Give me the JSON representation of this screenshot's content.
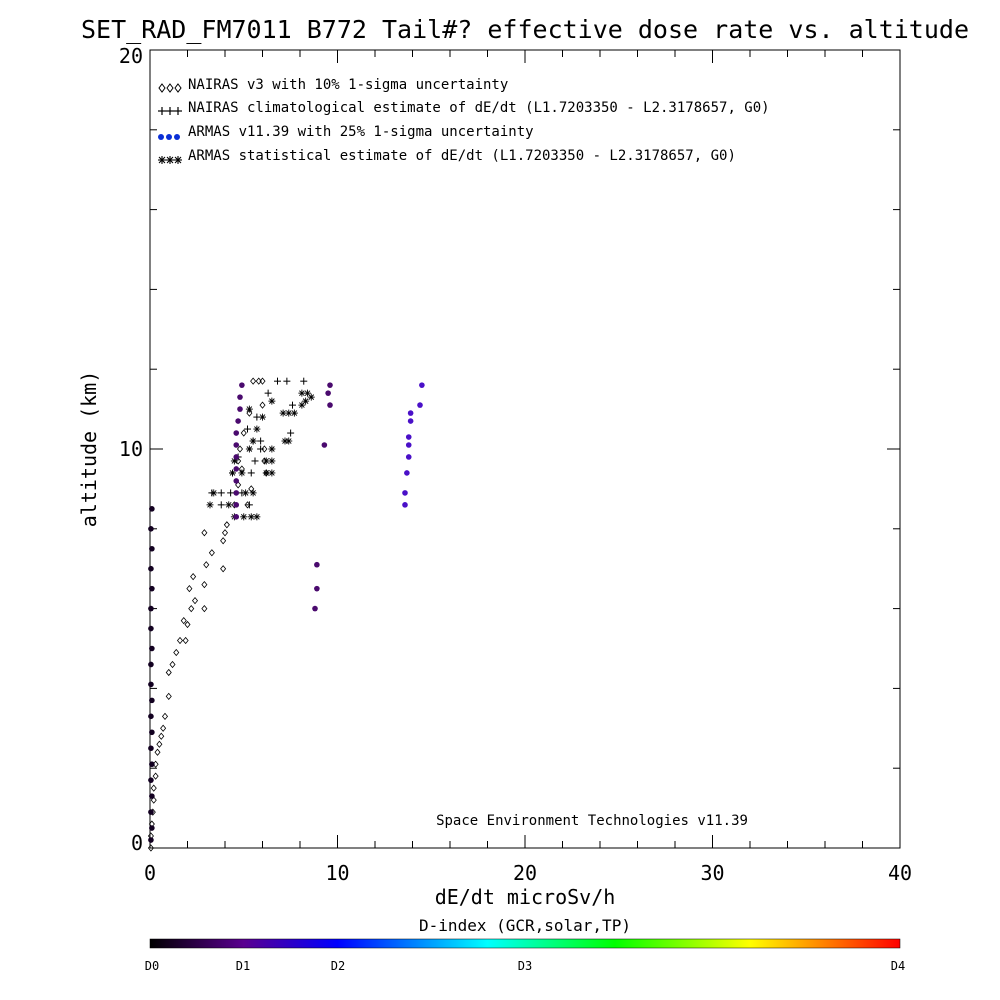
{
  "chart_data": {
    "type": "scatter",
    "title": "SET_RAD_FM7011  B772 Tail#? effective dose rate vs. altitude",
    "xlabel": "dE/dt microSv/h",
    "ylabel": "altitude (km)",
    "xlim": [
      0,
      40
    ],
    "ylim": [
      0,
      20
    ],
    "x_tick_labels": [
      "0",
      "10",
      "20",
      "30",
      "40"
    ],
    "y_tick_labels": [
      "0",
      "10",
      "20"
    ],
    "grid": false,
    "legend_position": "top-left",
    "legend": [
      {
        "marker": "diamond",
        "label": "NAIRAS v3 with 10% 1-sigma uncertainty"
      },
      {
        "marker": "plus",
        "label": "NAIRAS climatological estimate of dE/dt (L1.7203350 - L2.3178657, G0)"
      },
      {
        "marker": "dot",
        "label": "ARMAS v11.39 with 25% 1-sigma uncertainty"
      },
      {
        "marker": "asterisk",
        "label": "ARMAS statistical estimate of dE/dt (L1.7203350 - L2.3178657, G0)"
      }
    ],
    "annotation": "Space Environment Technologies v11.39",
    "colorbar": {
      "title": "D-index (GCR,solar,TP)",
      "labels": [
        {
          "text": "D0",
          "value": 0
        },
        {
          "text": "D1",
          "value": 0.25
        },
        {
          "text": "D2",
          "value": 0.5
        },
        {
          "text": "D3",
          "value": 1.0
        },
        {
          "text": "D4",
          "value": 2.0
        }
      ],
      "colors": [
        "#000000",
        "#5a0090",
        "#0000ff",
        "#00ffff",
        "#00ff00",
        "#ffff00",
        "#ff0000"
      ]
    },
    "series": [
      {
        "marker": "diamond",
        "points": [
          [
            0.05,
            0.0
          ],
          [
            0.05,
            0.3
          ],
          [
            0.1,
            0.6
          ],
          [
            0.15,
            0.9
          ],
          [
            0.2,
            1.2
          ],
          [
            0.2,
            1.5
          ],
          [
            0.3,
            1.8
          ],
          [
            0.3,
            2.1
          ],
          [
            0.4,
            2.4
          ],
          [
            0.5,
            2.6
          ],
          [
            0.6,
            2.8
          ],
          [
            0.7,
            3.0
          ],
          [
            0.8,
            3.3
          ],
          [
            1.0,
            3.8
          ],
          [
            1.0,
            4.4
          ],
          [
            1.2,
            4.6
          ],
          [
            1.4,
            4.9
          ],
          [
            1.6,
            5.2
          ],
          [
            1.9,
            5.2
          ],
          [
            2.0,
            5.6
          ],
          [
            1.8,
            5.7
          ],
          [
            2.2,
            6.0
          ],
          [
            2.4,
            6.2
          ],
          [
            2.9,
            6.0
          ],
          [
            2.1,
            6.5
          ],
          [
            2.9,
            6.6
          ],
          [
            2.3,
            6.8
          ],
          [
            3.0,
            7.1
          ],
          [
            3.9,
            7.0
          ],
          [
            3.3,
            7.4
          ],
          [
            3.9,
            7.7
          ],
          [
            4.0,
            7.9
          ],
          [
            2.9,
            7.9
          ],
          [
            4.1,
            8.1
          ],
          [
            4.5,
            8.6
          ],
          [
            5.2,
            8.6
          ],
          [
            4.7,
            9.1
          ],
          [
            5.4,
            9.0
          ],
          [
            4.9,
            9.5
          ],
          [
            6.2,
            9.4
          ],
          [
            4.7,
            9.7
          ],
          [
            6.1,
            9.7
          ],
          [
            4.8,
            10.0
          ],
          [
            6.1,
            10.0
          ],
          [
            5.0,
            10.4
          ],
          [
            5.3,
            10.9
          ],
          [
            6.0,
            11.1
          ],
          [
            5.5,
            11.7
          ],
          [
            5.8,
            11.7
          ],
          [
            6.0,
            11.7
          ]
        ]
      },
      {
        "marker": "plus",
        "points": [
          [
            3.3,
            8.9
          ],
          [
            3.8,
            8.9
          ],
          [
            4.3,
            8.9
          ],
          [
            3.8,
            8.6
          ],
          [
            4.9,
            8.9
          ],
          [
            5.3,
            8.6
          ],
          [
            4.4,
            9.4
          ],
          [
            5.4,
            9.4
          ],
          [
            5.6,
            9.7
          ],
          [
            4.7,
            9.8
          ],
          [
            5.5,
            10.2
          ],
          [
            5.9,
            10.2
          ],
          [
            5.2,
            10.5
          ],
          [
            5.9,
            10.0
          ],
          [
            5.7,
            10.8
          ],
          [
            6.3,
            11.4
          ],
          [
            7.6,
            11.1
          ],
          [
            7.5,
            10.4
          ],
          [
            6.8,
            11.7
          ],
          [
            7.3,
            11.7
          ],
          [
            8.2,
            11.7
          ]
        ]
      },
      {
        "marker": "asterisk",
        "points": [
          [
            3.2,
            8.6
          ],
          [
            3.4,
            8.9
          ],
          [
            4.2,
            8.6
          ],
          [
            4.5,
            8.3
          ],
          [
            5.0,
            8.3
          ],
          [
            5.4,
            8.3
          ],
          [
            5.7,
            8.3
          ],
          [
            5.1,
            8.9
          ],
          [
            5.5,
            8.9
          ],
          [
            4.4,
            9.4
          ],
          [
            4.9,
            9.4
          ],
          [
            6.2,
            9.4
          ],
          [
            6.5,
            9.4
          ],
          [
            4.5,
            9.7
          ],
          [
            6.2,
            9.7
          ],
          [
            6.5,
            9.7
          ],
          [
            5.3,
            10.0
          ],
          [
            6.5,
            10.0
          ],
          [
            5.5,
            10.2
          ],
          [
            7.2,
            10.2
          ],
          [
            7.4,
            10.2
          ],
          [
            5.7,
            10.5
          ],
          [
            6.0,
            10.8
          ],
          [
            7.1,
            10.9
          ],
          [
            7.4,
            10.9
          ],
          [
            7.7,
            10.9
          ],
          [
            5.3,
            11.0
          ],
          [
            6.5,
            11.2
          ],
          [
            8.1,
            11.1
          ],
          [
            8.3,
            11.2
          ],
          [
            8.1,
            11.4
          ],
          [
            8.4,
            11.4
          ],
          [
            8.6,
            11.3
          ]
        ]
      },
      {
        "marker": "dot",
        "points": [
          [
            0.05,
            0.2
          ],
          [
            0.1,
            0.5
          ],
          [
            0.05,
            0.9
          ],
          [
            0.1,
            1.3
          ],
          [
            0.05,
            1.7
          ],
          [
            0.1,
            2.1
          ],
          [
            0.05,
            2.5
          ],
          [
            0.1,
            2.9
          ],
          [
            0.05,
            3.3
          ],
          [
            0.1,
            3.7
          ],
          [
            0.05,
            4.1
          ],
          [
            0.05,
            4.6
          ],
          [
            0.1,
            5.0
          ],
          [
            0.05,
            5.5
          ],
          [
            0.05,
            6.0
          ],
          [
            0.1,
            6.5
          ],
          [
            0.05,
            7.0
          ],
          [
            0.1,
            7.5
          ],
          [
            0.05,
            8.0
          ],
          [
            0.1,
            8.5
          ],
          [
            4.6,
            8.3
          ],
          [
            4.6,
            8.6
          ],
          [
            4.6,
            8.9
          ],
          [
            4.6,
            9.2
          ],
          [
            4.6,
            9.5
          ],
          [
            4.6,
            9.8
          ],
          [
            4.6,
            10.1
          ],
          [
            4.6,
            10.4
          ],
          [
            4.7,
            10.7
          ],
          [
            4.8,
            11.0
          ],
          [
            4.8,
            11.3
          ],
          [
            4.9,
            11.6
          ],
          [
            9.6,
            11.6
          ],
          [
            9.5,
            11.4
          ],
          [
            9.6,
            11.1
          ],
          [
            9.3,
            10.1
          ],
          [
            8.9,
            7.1
          ],
          [
            8.9,
            6.5
          ],
          [
            8.8,
            6.0
          ],
          [
            13.6,
            8.6
          ],
          [
            13.6,
            8.9
          ],
          [
            13.7,
            9.4
          ],
          [
            13.8,
            9.8
          ],
          [
            13.8,
            10.1
          ],
          [
            13.8,
            10.3
          ],
          [
            13.9,
            10.7
          ],
          [
            13.9,
            10.9
          ],
          [
            14.4,
            11.1
          ],
          [
            14.5,
            11.6
          ]
        ]
      }
    ]
  }
}
